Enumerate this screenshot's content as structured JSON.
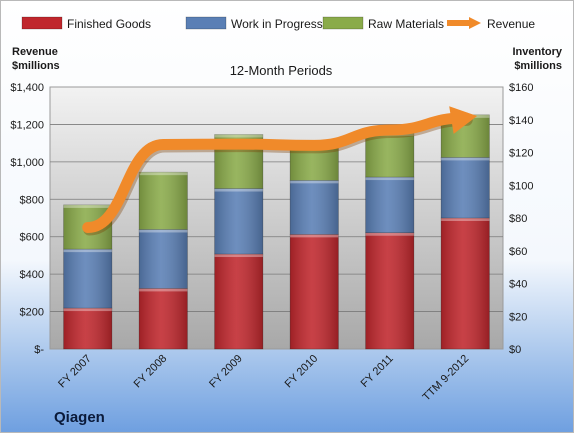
{
  "chart_data": {
    "type": "bar",
    "stacked": true,
    "subtitle": "12-Month Periods",
    "company": "Qiagen",
    "y_left_label_line1": "Revenue",
    "y_left_label_line2": "$millions",
    "y_right_label_line1": "Inventory",
    "y_right_label_line2": "$millions",
    "categories": [
      "FY 2007",
      "FY 2008",
      "FY 2009",
      "FY 2010",
      "FY 2011",
      "TTM 9-2012"
    ],
    "ylim_left": [
      0,
      1400
    ],
    "ylim_right": [
      0,
      160
    ],
    "yticks_left": [
      "$-",
      "$200",
      "$400",
      "$600",
      "$800",
      "$1,000",
      "$1,200",
      "$1,400"
    ],
    "yticks_right": [
      "$0",
      "$20",
      "$40",
      "$60",
      "$80",
      "$100",
      "$120",
      "$140",
      "$160"
    ],
    "series": [
      {
        "name": "Finished Goods",
        "axis": "right",
        "color": "#c0272d",
        "values": [
          25,
          37,
          58,
          70,
          71,
          80
        ]
      },
      {
        "name": "Work in Progress",
        "axis": "right",
        "color": "#5a7fb5",
        "values": [
          36,
          36,
          40,
          33,
          34,
          37
        ]
      },
      {
        "name": "Raw Materials",
        "axis": "right",
        "color": "#8aab4a",
        "values": [
          27,
          35,
          33,
          24,
          27,
          26
        ]
      },
      {
        "name": "Revenue",
        "axis": "left",
        "type": "line",
        "color": "#f08a2a",
        "values": [
          649,
          1093,
          1095,
          1088,
          1170,
          1235
        ]
      }
    ],
    "legend_position": "top",
    "grid": true
  }
}
